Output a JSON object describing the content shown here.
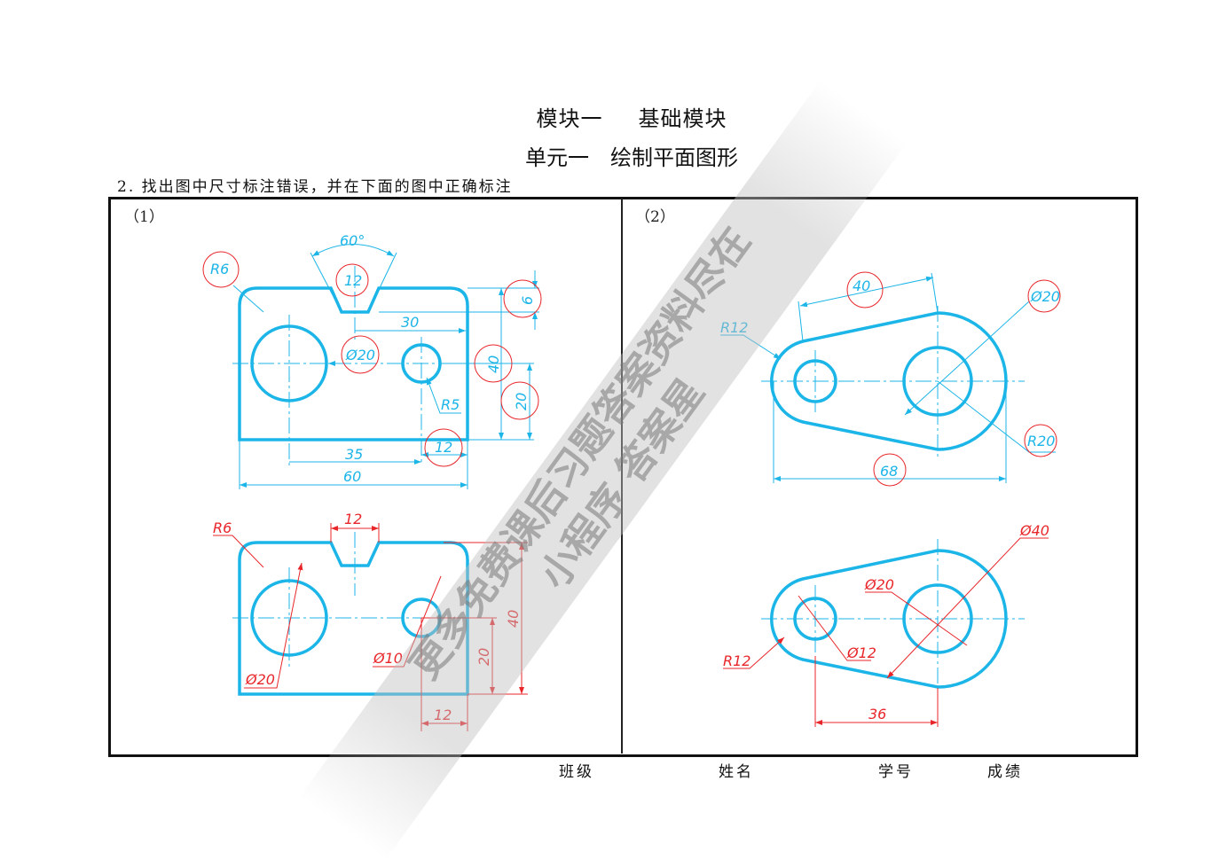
{
  "header": {
    "module": "模块一",
    "module_name": "基础模块",
    "unit": "单元一",
    "unit_name": "绘制平面图形",
    "question": "2. 找出图中尺寸标注错误，并在下面的图中正确标注"
  },
  "panels": [
    {
      "label": "（1）",
      "original_labels": [
        "60°",
        "12",
        "R6",
        "6",
        "30",
        "Ø20",
        "40",
        "20",
        "R5",
        "35",
        "12",
        "60"
      ],
      "corrected_labels": [
        "R6",
        "12",
        "Ø20",
        "Ø10",
        "40",
        "20",
        "12"
      ]
    },
    {
      "label": "（2）",
      "original_labels": [
        "40",
        "Ø20",
        "R12",
        "R20",
        "68"
      ],
      "corrected_labels": [
        "Ø40",
        "Ø20",
        "R12",
        "Ø12",
        "36"
      ]
    }
  ],
  "footer": {
    "class_label": "班级",
    "name_label": "姓名",
    "id_label": "学号",
    "score_label": "成绩"
  },
  "watermark": {
    "line1": "更多免费课后习题答案资料尽在",
    "line2": "小程序 答案星"
  },
  "colors": {
    "outline": "#1cb5e8",
    "error_mark": "#e8262a"
  }
}
